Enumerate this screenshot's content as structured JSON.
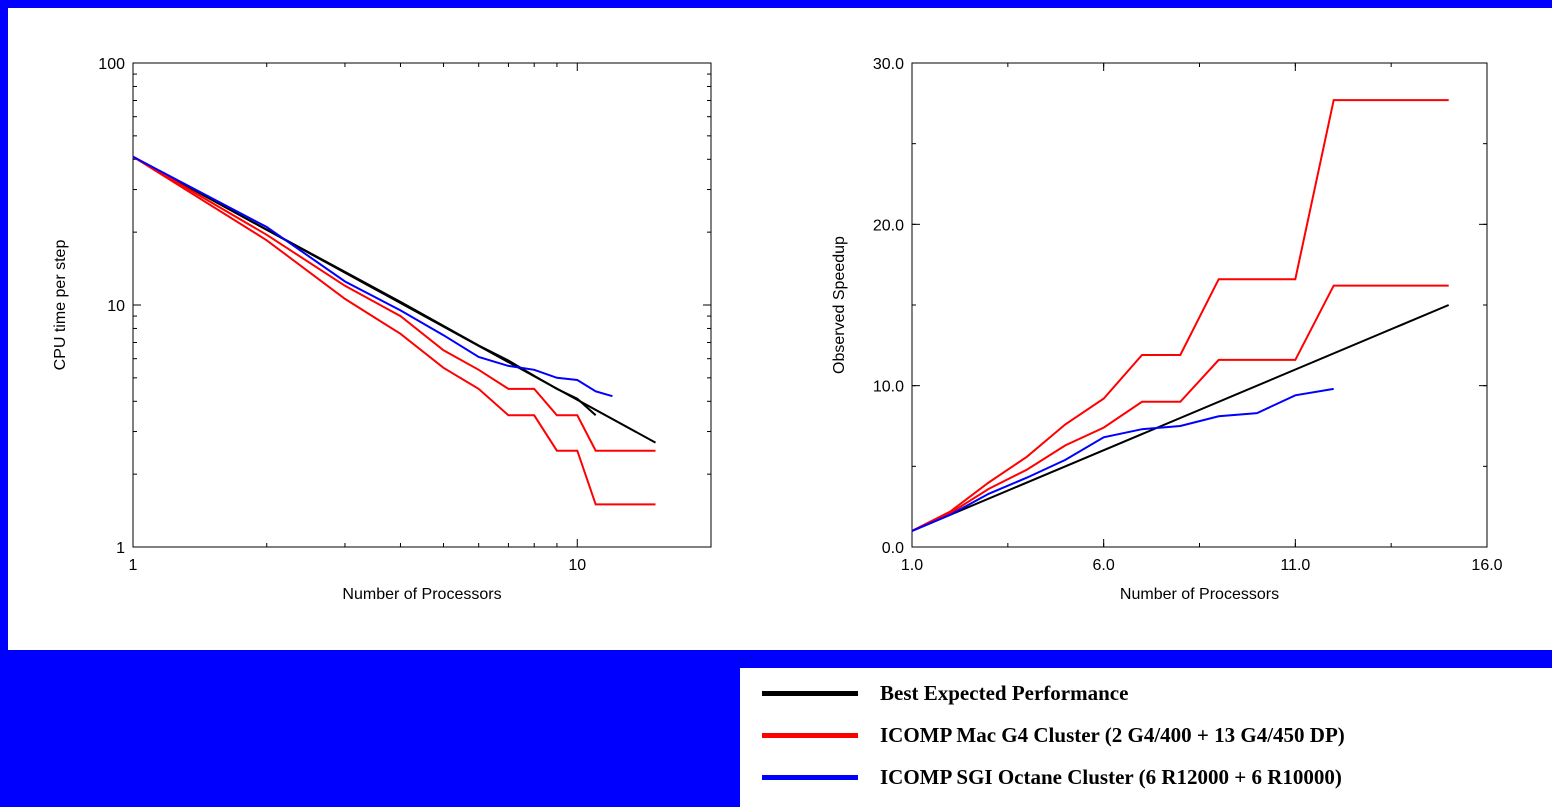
{
  "colors": {
    "background": "#0000ff",
    "panel": "#ffffff",
    "best": "#000000",
    "mac": "#ff0000",
    "sgi": "#0000ff"
  },
  "chart_data": [
    {
      "type": "line",
      "xscale": "log",
      "yscale": "log",
      "xlim": [
        1,
        20
      ],
      "ylim": [
        1,
        100
      ],
      "xlabel": "Number of Processors",
      "ylabel": "CPU time per step",
      "xticks": [
        {
          "value": 1,
          "label": "1"
        },
        {
          "value": 10,
          "label": "10"
        }
      ],
      "yticks": [
        {
          "value": 1,
          "label": "1"
        },
        {
          "value": 10,
          "label": "10"
        },
        {
          "value": 100,
          "label": "100"
        }
      ],
      "grid": false,
      "series": [
        {
          "name": "Best Expected Performance",
          "color": "#000000",
          "x": [
            1,
            15
          ],
          "y": [
            41,
            2.7
          ]
        },
        {
          "name": "Best Expected Performance",
          "color": "#000000",
          "x": [
            1,
            2,
            3,
            4,
            5,
            6,
            7,
            8,
            9,
            10,
            11
          ],
          "y": [
            41,
            20.5,
            13.7,
            10.3,
            8.2,
            6.8,
            5.9,
            5.1,
            4.5,
            4.1,
            3.5
          ]
        },
        {
          "name": "ICOMP Mac G4 Cluster (2 G4/400 + 13 G4/450 DP)",
          "color": "#ff0000",
          "x": [
            1,
            2,
            3,
            4,
            5,
            6,
            7,
            8,
            9,
            10,
            11,
            15
          ],
          "y": [
            41,
            19.5,
            12,
            9,
            6.5,
            5.4,
            4.5,
            4.5,
            3.5,
            3.5,
            2.5,
            2.5
          ]
        },
        {
          "name": "ICOMP Mac G4 Cluster (2 G4/400 + 13 G4/450 DP)",
          "color": "#ff0000",
          "x": [
            1,
            2,
            3,
            4,
            5,
            6,
            7,
            8,
            9,
            10,
            11,
            15
          ],
          "y": [
            41,
            18.5,
            10.6,
            7.6,
            5.5,
            4.5,
            3.5,
            3.5,
            2.5,
            2.5,
            1.5,
            1.5
          ]
        },
        {
          "name": "ICOMP SGI Octane Cluster (6 R12000 + 6 R10000)",
          "color": "#0000ff",
          "x": [
            1,
            2,
            3,
            4,
            5,
            6,
            7,
            8,
            9,
            10,
            11,
            12
          ],
          "y": [
            41,
            21,
            12.5,
            9.5,
            7.5,
            6.1,
            5.6,
            5.4,
            5.0,
            4.9,
            4.4,
            4.2
          ]
        }
      ]
    },
    {
      "type": "line",
      "xlim": [
        1,
        16
      ],
      "ylim": [
        0,
        30
      ],
      "xlabel": "Number of Processors",
      "ylabel": "Observed Speedup",
      "xticks": [
        {
          "value": 1,
          "label": "1.0"
        },
        {
          "value": 6,
          "label": "6.0"
        },
        {
          "value": 11,
          "label": "11.0"
        },
        {
          "value": 16,
          "label": "16.0"
        }
      ],
      "yticks": [
        {
          "value": 0,
          "label": "0.0"
        },
        {
          "value": 10,
          "label": "10.0"
        },
        {
          "value": 20,
          "label": "20.0"
        },
        {
          "value": 30,
          "label": "30.0"
        }
      ],
      "grid": false,
      "series": [
        {
          "name": "Best Expected Performance",
          "color": "#000000",
          "x": [
            1,
            15
          ],
          "y": [
            1,
            15
          ]
        },
        {
          "name": "ICOMP Mac G4 Cluster (2 G4/400 + 13 G4/450 DP)",
          "color": "#ff0000",
          "x": [
            1,
            2,
            3,
            4,
            5,
            6,
            7,
            8,
            9,
            10,
            11,
            12,
            15
          ],
          "y": [
            1,
            2.2,
            4,
            5.6,
            7.6,
            9.2,
            11.9,
            11.9,
            16.6,
            16.6,
            16.6,
            27.7,
            27.7
          ]
        },
        {
          "name": "ICOMP Mac G4 Cluster (2 G4/400 + 13 G4/450 DP)",
          "color": "#ff0000",
          "x": [
            1,
            2,
            3,
            4,
            5,
            6,
            7,
            8,
            9,
            10,
            11,
            12,
            15
          ],
          "y": [
            1,
            2.1,
            3.6,
            4.8,
            6.3,
            7.4,
            9.0,
            9.0,
            11.6,
            11.6,
            11.6,
            16.2,
            16.2
          ]
        },
        {
          "name": "ICOMP SGI Octane Cluster (6 R12000 + 6 R10000)",
          "color": "#0000ff",
          "x": [
            1,
            2,
            3,
            4,
            5,
            6,
            7,
            8,
            9,
            10,
            11,
            12
          ],
          "y": [
            1,
            2.0,
            3.3,
            4.3,
            5.4,
            6.8,
            7.3,
            7.5,
            8.1,
            8.3,
            9.4,
            9.8
          ]
        }
      ]
    }
  ],
  "legend": {
    "items": [
      {
        "label": "Best Expected Performance",
        "color": "#000000"
      },
      {
        "label": "ICOMP Mac G4 Cluster (2 G4/400 + 13 G4/450 DP)",
        "color": "#ff0000"
      },
      {
        "label": "ICOMP SGI Octane Cluster (6 R12000 + 6 R10000)",
        "color": "#0000ff"
      }
    ]
  }
}
